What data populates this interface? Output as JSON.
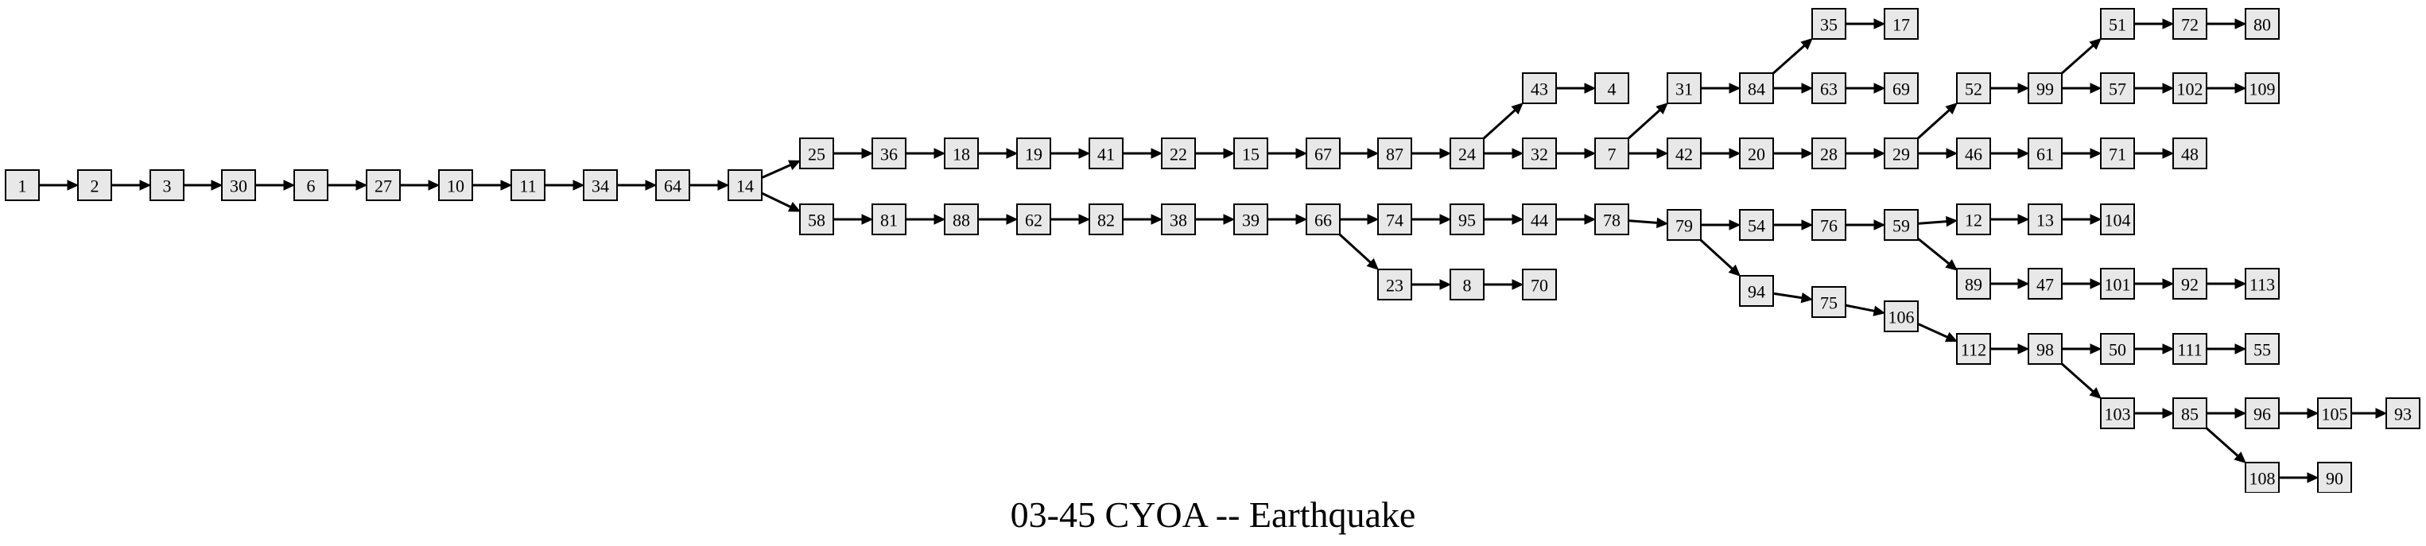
{
  "title": "03-45 CYOA -- Earthquake",
  "style": {
    "node_fill": "#e8e8e8",
    "node_stroke": "#000000",
    "edge_color": "#000000",
    "background": "#ffffff"
  },
  "nodes": [
    "1",
    "2",
    "3",
    "30",
    "6",
    "27",
    "10",
    "11",
    "34",
    "64",
    "14",
    "25",
    "36",
    "18",
    "19",
    "41",
    "22",
    "15",
    "67",
    "87",
    "24",
    "43",
    "4",
    "32",
    "7",
    "31",
    "84",
    "35",
    "17",
    "63",
    "69",
    "42",
    "20",
    "28",
    "29",
    "52",
    "99",
    "51",
    "72",
    "80",
    "57",
    "102",
    "109",
    "46",
    "61",
    "71",
    "48",
    "58",
    "81",
    "88",
    "62",
    "82",
    "38",
    "39",
    "66",
    "74",
    "95",
    "44",
    "78",
    "79",
    "54",
    "76",
    "59",
    "12",
    "13",
    "104",
    "89",
    "47",
    "101",
    "92",
    "113",
    "94",
    "75",
    "106",
    "112",
    "98",
    "50",
    "111",
    "55",
    "103",
    "85",
    "96",
    "105",
    "93",
    "108",
    "90",
    "23",
    "8",
    "70"
  ],
  "edges": [
    [
      "1",
      "2"
    ],
    [
      "2",
      "3"
    ],
    [
      "3",
      "30"
    ],
    [
      "30",
      "6"
    ],
    [
      "6",
      "27"
    ],
    [
      "27",
      "10"
    ],
    [
      "10",
      "11"
    ],
    [
      "11",
      "34"
    ],
    [
      "34",
      "64"
    ],
    [
      "64",
      "14"
    ],
    [
      "14",
      "25"
    ],
    [
      "14",
      "58"
    ],
    [
      "25",
      "36"
    ],
    [
      "36",
      "18"
    ],
    [
      "18",
      "19"
    ],
    [
      "19",
      "41"
    ],
    [
      "41",
      "22"
    ],
    [
      "22",
      "15"
    ],
    [
      "15",
      "67"
    ],
    [
      "67",
      "87"
    ],
    [
      "87",
      "24"
    ],
    [
      "24",
      "43"
    ],
    [
      "43",
      "4"
    ],
    [
      "24",
      "32"
    ],
    [
      "32",
      "7"
    ],
    [
      "7",
      "31"
    ],
    [
      "31",
      "84"
    ],
    [
      "84",
      "35"
    ],
    [
      "35",
      "17"
    ],
    [
      "84",
      "63"
    ],
    [
      "63",
      "69"
    ],
    [
      "7",
      "42"
    ],
    [
      "42",
      "20"
    ],
    [
      "20",
      "28"
    ],
    [
      "28",
      "29"
    ],
    [
      "29",
      "52"
    ],
    [
      "52",
      "99"
    ],
    [
      "99",
      "51"
    ],
    [
      "51",
      "72"
    ],
    [
      "72",
      "80"
    ],
    [
      "99",
      "57"
    ],
    [
      "57",
      "102"
    ],
    [
      "102",
      "109"
    ],
    [
      "29",
      "46"
    ],
    [
      "46",
      "61"
    ],
    [
      "61",
      "71"
    ],
    [
      "71",
      "48"
    ],
    [
      "58",
      "81"
    ],
    [
      "81",
      "88"
    ],
    [
      "88",
      "62"
    ],
    [
      "62",
      "82"
    ],
    [
      "82",
      "38"
    ],
    [
      "38",
      "39"
    ],
    [
      "39",
      "66"
    ],
    [
      "66",
      "74"
    ],
    [
      "74",
      "95"
    ],
    [
      "95",
      "44"
    ],
    [
      "44",
      "78"
    ],
    [
      "78",
      "79"
    ],
    [
      "79",
      "54"
    ],
    [
      "54",
      "76"
    ],
    [
      "76",
      "59"
    ],
    [
      "59",
      "12"
    ],
    [
      "12",
      "13"
    ],
    [
      "13",
      "104"
    ],
    [
      "59",
      "89"
    ],
    [
      "89",
      "47"
    ],
    [
      "47",
      "101"
    ],
    [
      "101",
      "92"
    ],
    [
      "92",
      "113"
    ],
    [
      "79",
      "94"
    ],
    [
      "94",
      "75"
    ],
    [
      "75",
      "106"
    ],
    [
      "106",
      "112"
    ],
    [
      "112",
      "98"
    ],
    [
      "98",
      "50"
    ],
    [
      "50",
      "111"
    ],
    [
      "111",
      "55"
    ],
    [
      "98",
      "103"
    ],
    [
      "103",
      "85"
    ],
    [
      "85",
      "96"
    ],
    [
      "96",
      "105"
    ],
    [
      "105",
      "93"
    ],
    [
      "85",
      "108"
    ],
    [
      "108",
      "90"
    ],
    [
      "66",
      "23"
    ],
    [
      "23",
      "8"
    ],
    [
      "8",
      "70"
    ]
  ]
}
